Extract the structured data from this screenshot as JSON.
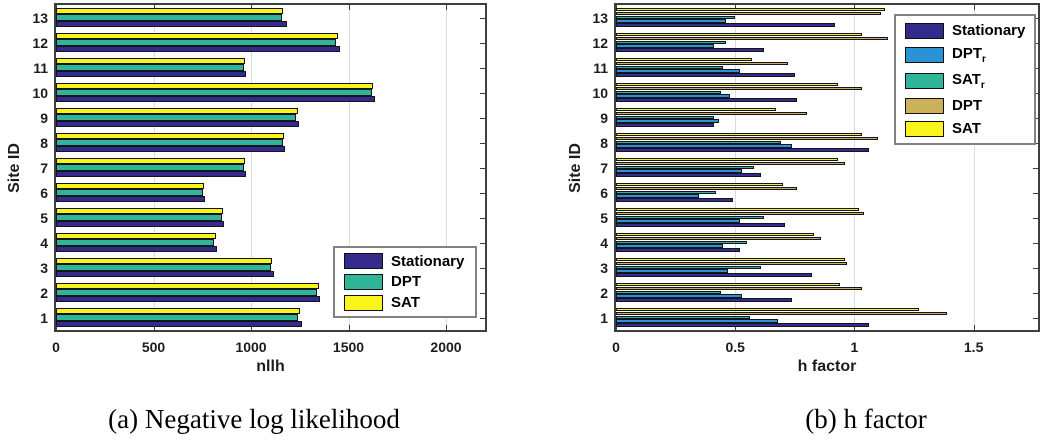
{
  "figure": {
    "kind": "two grouped horizontal bar charts (MATLAB style)",
    "axis_color": "#3f3f3f",
    "grid_color": "#dbdbdb"
  },
  "chart_data": [
    {
      "type": "bar",
      "orientation": "horizontal",
      "caption": "(a) Negative log likelihood",
      "title": "",
      "xlabel": "nllh",
      "ylabel": "Site ID",
      "categories": [
        "1",
        "2",
        "3",
        "4",
        "5",
        "6",
        "7",
        "8",
        "9",
        "10",
        "11",
        "12",
        "13"
      ],
      "xlim": [
        0,
        2200
      ],
      "xticks": [
        {
          "label": "0",
          "value": 0
        },
        {
          "label": "500",
          "value": 500
        },
        {
          "label": "1000",
          "value": 1000
        },
        {
          "label": "1500",
          "value": 1500
        },
        {
          "label": "2000",
          "value": 2000
        }
      ],
      "grid": "vertical",
      "legend_position": "lower right",
      "series": [
        {
          "name": "Stationary",
          "color": "#352B8C",
          "values": [
            1262,
            1354,
            1118,
            825,
            862,
            765,
            975,
            1176,
            1244,
            1638,
            973,
            1457,
            1184
          ]
        },
        {
          "name": "DPT",
          "color": "#30B598",
          "values": [
            1240,
            1337,
            1103,
            812,
            852,
            753,
            963,
            1163,
            1233,
            1618,
            965,
            1438,
            1160
          ]
        },
        {
          "name": "SAT",
          "color": "#F9F41B",
          "values": [
            1252,
            1347,
            1110,
            818,
            858,
            760,
            970,
            1170,
            1240,
            1624,
            970,
            1447,
            1164
          ]
        }
      ]
    },
    {
      "type": "bar",
      "orientation": "horizontal",
      "caption": "(b) h factor",
      "title": "",
      "xlabel": "h factor",
      "ylabel": "Site ID",
      "categories": [
        "1",
        "2",
        "3",
        "4",
        "5",
        "6",
        "7",
        "8",
        "9",
        "10",
        "11",
        "12",
        "13"
      ],
      "xlim": [
        0,
        1.77
      ],
      "xticks": [
        {
          "label": "0",
          "value": 0
        },
        {
          "label": "0.5",
          "value": 0.5
        },
        {
          "label": "1",
          "value": 1
        },
        {
          "label": "1.5",
          "value": 1.5
        }
      ],
      "grid": "vertical",
      "legend_position": "upper right",
      "series": [
        {
          "name": "Stationary",
          "color": "#352B8C",
          "values": [
            1.06,
            0.74,
            0.82,
            0.52,
            0.71,
            0.49,
            0.61,
            1.06,
            0.41,
            0.76,
            0.75,
            0.62,
            0.92
          ]
        },
        {
          "name": "DPT_r",
          "color": "#2A93D5",
          "values": [
            0.68,
            0.53,
            0.47,
            0.45,
            0.52,
            0.35,
            0.53,
            0.74,
            0.43,
            0.48,
            0.52,
            0.41,
            0.46
          ]
        },
        {
          "name": "SAT_r",
          "color": "#30B598",
          "values": [
            0.56,
            0.44,
            0.61,
            0.55,
            0.62,
            0.42,
            0.58,
            0.69,
            0.41,
            0.44,
            0.45,
            0.46,
            0.5
          ]
        },
        {
          "name": "DPT",
          "color": "#CBB159",
          "values": [
            1.39,
            1.03,
            0.97,
            0.86,
            1.04,
            0.76,
            0.96,
            1.1,
            0.8,
            1.03,
            0.72,
            1.14,
            1.11
          ]
        },
        {
          "name": "SAT",
          "color": "#F9F41B",
          "values": [
            1.27,
            0.94,
            0.96,
            0.83,
            1.02,
            0.7,
            0.93,
            1.03,
            0.67,
            0.93,
            0.57,
            1.03,
            1.13
          ]
        }
      ]
    }
  ]
}
